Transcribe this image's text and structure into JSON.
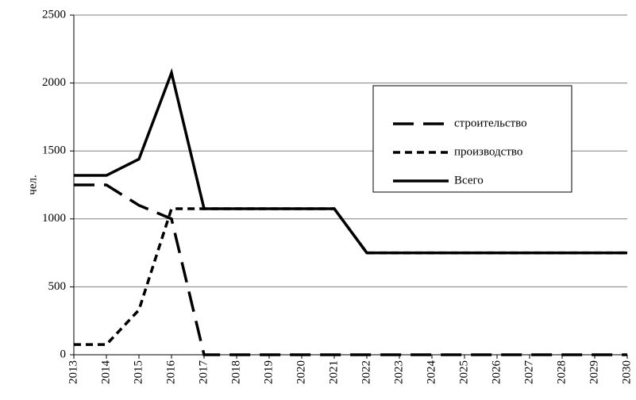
{
  "chart_data": {
    "type": "line",
    "ylabel": "чел.",
    "categories": [
      "2013",
      "2014",
      "2015",
      "2016",
      "2017",
      "2018",
      "2019",
      "2020",
      "2021",
      "2022",
      "2023",
      "2024",
      "2025",
      "2026",
      "2027",
      "2028",
      "2029",
      "2030"
    ],
    "series": [
      {
        "name": "строительство",
        "color": "#000000",
        "line_style": "long-dash",
        "values": [
          1250,
          1250,
          1100,
          1000,
          0,
          0,
          0,
          0,
          0,
          0,
          0,
          0,
          0,
          0,
          0,
          0,
          0,
          0
        ]
      },
      {
        "name": "производство",
        "color": "#000000",
        "line_style": "short-dash",
        "values": [
          75,
          75,
          330,
          1075,
          1075,
          1075,
          1075,
          1075,
          1075,
          750,
          750,
          750,
          750,
          750,
          750,
          750,
          750,
          750
        ]
      },
      {
        "name": "Всего",
        "color": "#000000",
        "line_style": "solid",
        "values": [
          1320,
          1320,
          1440,
          2075,
          1075,
          1075,
          1075,
          1075,
          1075,
          750,
          750,
          750,
          750,
          750,
          750,
          750,
          750,
          750
        ]
      }
    ],
    "ylim": [
      0,
      2500
    ],
    "yticks": [
      0,
      500,
      1000,
      1500,
      2000,
      2500
    ],
    "grid": true
  }
}
